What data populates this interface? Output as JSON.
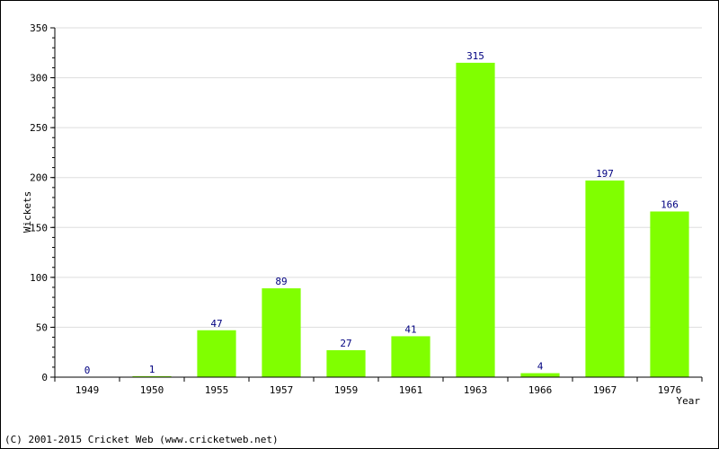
{
  "chart_data": {
    "type": "bar",
    "categories": [
      "1949",
      "1950",
      "1955",
      "1957",
      "1959",
      "1961",
      "1963",
      "1966",
      "1967",
      "1976"
    ],
    "values": [
      0,
      1,
      47,
      89,
      27,
      41,
      315,
      4,
      197,
      166
    ],
    "title": "",
    "xlabel": "Year",
    "ylabel": "Wickets",
    "ylim": [
      0,
      350
    ],
    "yticks": [
      0,
      50,
      100,
      150,
      200,
      250,
      300,
      350
    ],
    "grid": true,
    "bar_color": "#80ff00",
    "value_label_color": "#000080"
  },
  "footer": "(C) 2001-2015 Cricket Web (www.cricketweb.net)"
}
